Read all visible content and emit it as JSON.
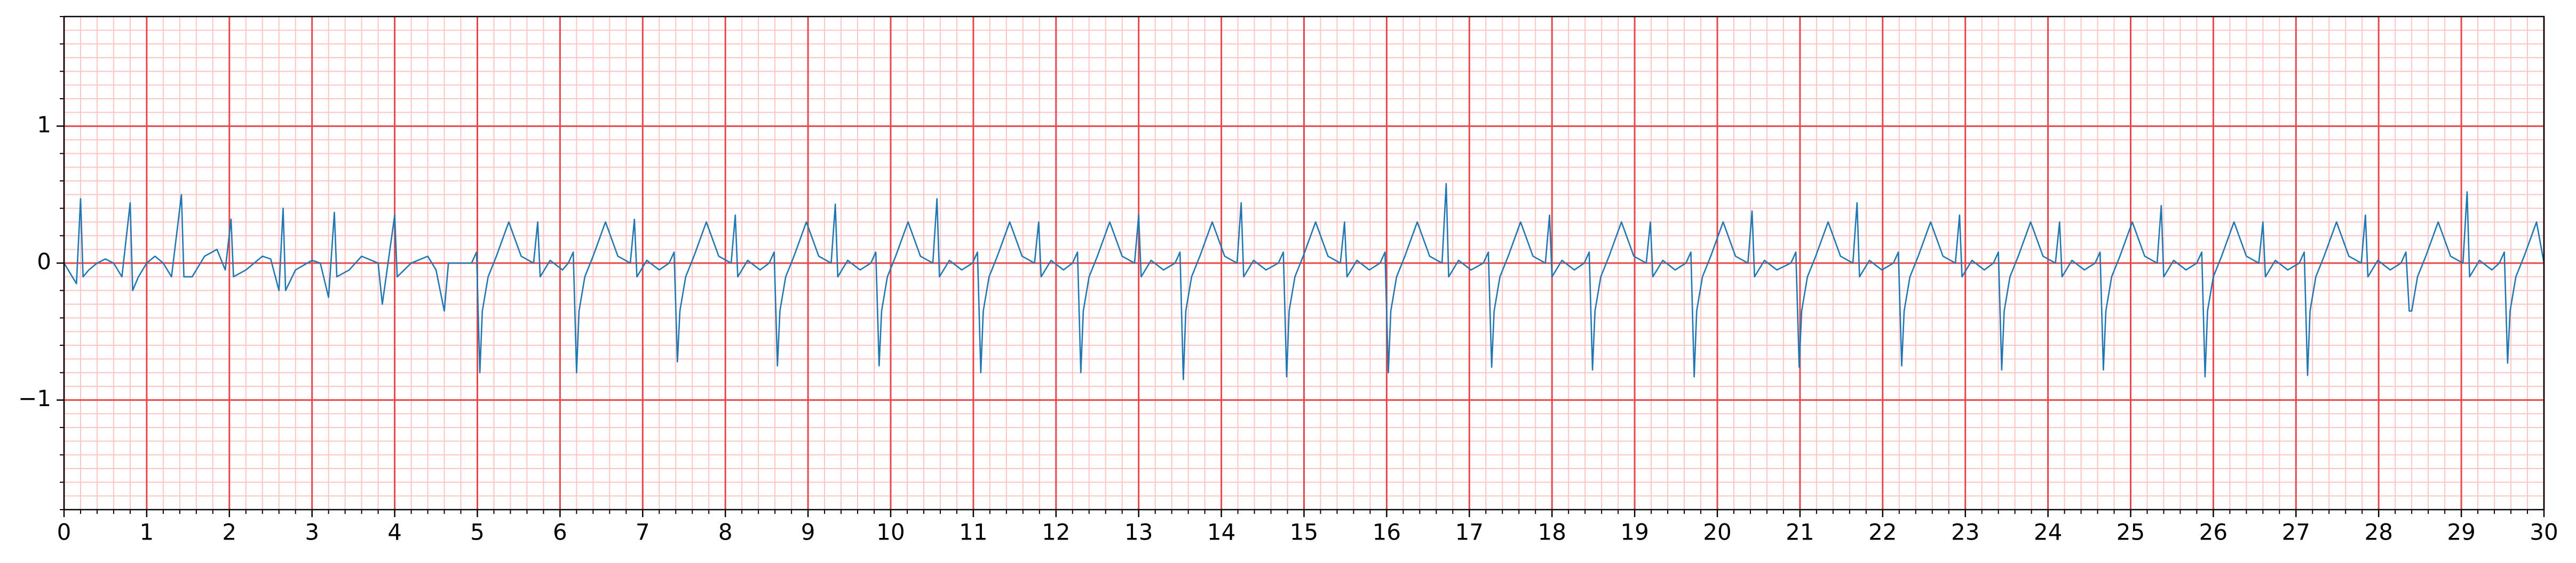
{
  "chart_data": {
    "type": "line",
    "xlim": [
      0,
      30
    ],
    "ylim": [
      -1.8,
      1.8
    ],
    "xticks": [
      0,
      1,
      2,
      3,
      4,
      5,
      6,
      7,
      8,
      9,
      10,
      11,
      12,
      13,
      14,
      15,
      16,
      17,
      18,
      19,
      20,
      21,
      22,
      23,
      24,
      25,
      26,
      27,
      28,
      29,
      30
    ],
    "yticks": [
      {
        "value": -1,
        "label": "−1"
      },
      0,
      1
    ],
    "grid": true,
    "grid_color": "#e8474a",
    "minor_grid_color": "#ffc4c4",
    "minor_grid_step": {
      "x": 0.2,
      "y": 0.1
    },
    "x": [
      0,
      0.1,
      0.15,
      0.2,
      0.23,
      0.3,
      0.4,
      0.5,
      0.6,
      0.7,
      0.8,
      0.83,
      0.9,
      1.0,
      1.1,
      1.2,
      1.3,
      1.42,
      1.45,
      1.55,
      1.7,
      1.85,
      1.95,
      2.02,
      2.05,
      2.2,
      2.4,
      2.5,
      2.6,
      2.65,
      2.68,
      2.8,
      3.0,
      3.1,
      3.2,
      3.27,
      3.3,
      3.45,
      3.6,
      3.8,
      3.85,
      4.0,
      4.03,
      4.2,
      4.4,
      4.5,
      4.6,
      4.65,
      4.8,
      4.93,
      4.99,
      5.03,
      5.06,
      5.13,
      5.23,
      5.38,
      5.53,
      5.68,
      5.73,
      5.76,
      5.88,
      6.03,
      6.1,
      6.16,
      6.2,
      6.23,
      6.3,
      6.4,
      6.55,
      6.7,
      6.85,
      6.9,
      6.93,
      7.05,
      7.2,
      7.32,
      7.38,
      7.42,
      7.45,
      7.52,
      7.62,
      7.77,
      7.92,
      8.07,
      8.12,
      8.15,
      8.27,
      8.42,
      8.53,
      8.59,
      8.63,
      8.66,
      8.73,
      8.83,
      8.98,
      9.13,
      9.28,
      9.33,
      9.36,
      9.48,
      9.63,
      9.76,
      9.82,
      9.86,
      9.89,
      9.96,
      10.06,
      10.21,
      10.36,
      10.51,
      10.56,
      10.59,
      10.71,
      10.86,
      10.99,
      11.05,
      11.09,
      11.12,
      11.19,
      11.29,
      11.44,
      11.59,
      11.74,
      11.79,
      11.82,
      11.94,
      12.09,
      12.2,
      12.26,
      12.3,
      12.33,
      12.4,
      12.5,
      12.65,
      12.8,
      12.95,
      13.0,
      13.03,
      13.15,
      13.3,
      13.44,
      13.5,
      13.54,
      13.57,
      13.64,
      13.74,
      13.89,
      14.04,
      14.19,
      14.24,
      14.27,
      14.39,
      14.54,
      14.69,
      14.75,
      14.79,
      14.82,
      14.89,
      14.99,
      15.14,
      15.29,
      15.44,
      15.49,
      15.52,
      15.64,
      15.79,
      15.92,
      15.98,
      16.02,
      16.05,
      16.12,
      16.22,
      16.37,
      16.52,
      16.67,
      16.72,
      16.75,
      16.87,
      17.02,
      17.17,
      17.23,
      17.27,
      17.3,
      17.37,
      17.47,
      17.62,
      17.77,
      17.92,
      17.97,
      18.0,
      18.12,
      18.27,
      18.39,
      18.45,
      18.49,
      18.52,
      18.59,
      18.69,
      18.84,
      18.99,
      19.14,
      19.19,
      19.22,
      19.34,
      19.49,
      19.62,
      19.68,
      19.72,
      19.75,
      19.82,
      19.92,
      20.07,
      20.22,
      20.37,
      20.42,
      20.45,
      20.57,
      20.72,
      20.89,
      20.95,
      20.99,
      21.02,
      21.09,
      21.19,
      21.34,
      21.49,
      21.64,
      21.69,
      21.72,
      21.84,
      21.99,
      22.13,
      22.19,
      22.23,
      22.26,
      22.33,
      22.43,
      22.58,
      22.73,
      22.88,
      22.93,
      22.96,
      23.08,
      23.23,
      23.34,
      23.4,
      23.44,
      23.47,
      23.54,
      23.64,
      23.79,
      23.94,
      24.09,
      24.14,
      24.17,
      24.29,
      24.44,
      24.57,
      24.63,
      24.67,
      24.7,
      24.77,
      24.87,
      25.02,
      25.17,
      25.32,
      25.37,
      25.4,
      25.52,
      25.67,
      25.8,
      25.86,
      25.9,
      25.93,
      26.0,
      26.1,
      26.25,
      26.4,
      26.55,
      26.6,
      26.63,
      26.75,
      26.9,
      27.04,
      27.1,
      27.14,
      27.17,
      27.24,
      27.34,
      27.49,
      27.64,
      27.79,
      27.84,
      27.87,
      27.99,
      28.14,
      28.27,
      28.33,
      28.37,
      28.4,
      28.47,
      28.57,
      28.72,
      28.87,
      29.02,
      29.07,
      29.1,
      29.22,
      29.37,
      29.46,
      29.52,
      29.56,
      29.59,
      29.66,
      29.76,
      29.91,
      30.0
    ],
    "series": [
      {
        "color": "#1f77b4",
        "values": [
          0,
          -0.1,
          -0.15,
          0.47,
          -0.1,
          -0.05,
          0.0,
          0.03,
          0.0,
          -0.1,
          0.44,
          -0.2,
          -0.1,
          0.0,
          0.05,
          0.0,
          -0.1,
          0.5,
          -0.1,
          -0.1,
          0.05,
          0.1,
          -0.05,
          0.32,
          -0.1,
          -0.05,
          0.05,
          0.03,
          -0.2,
          0.4,
          -0.2,
          -0.05,
          0.02,
          0.0,
          -0.25,
          0.37,
          -0.1,
          -0.05,
          0.05,
          0.0,
          -0.3,
          0.35,
          -0.1,
          0.0,
          0.05,
          -0.05,
          -0.35,
          0.0,
          0.0,
          0,
          0.08,
          -0.8,
          -0.35,
          -0.1,
          0.05,
          0.3,
          0.05,
          0,
          0.3,
          -0.1,
          0.02,
          -0.05,
          0,
          0.08,
          -0.8,
          -0.35,
          -0.1,
          0.05,
          0.3,
          0.05,
          0,
          0.32,
          -0.1,
          0.02,
          -0.05,
          0,
          0.08,
          -0.72,
          -0.35,
          -0.1,
          0.05,
          0.3,
          0.05,
          0,
          0.35,
          -0.1,
          0.02,
          -0.05,
          0,
          0.08,
          -0.75,
          -0.35,
          -0.1,
          0.05,
          0.3,
          0.05,
          0,
          0.43,
          -0.1,
          0.02,
          -0.05,
          0,
          0.08,
          -0.75,
          -0.35,
          -0.1,
          0.05,
          0.3,
          0.05,
          0,
          0.47,
          -0.1,
          0.02,
          -0.05,
          0,
          0.08,
          -0.8,
          -0.35,
          -0.1,
          0.05,
          0.3,
          0.05,
          0,
          0.3,
          -0.1,
          0.02,
          -0.05,
          0,
          0.08,
          -0.8,
          -0.35,
          -0.1,
          0.05,
          0.3,
          0.05,
          0,
          0.35,
          -0.1,
          0.02,
          -0.05,
          0,
          0.08,
          -0.85,
          -0.35,
          -0.1,
          0.05,
          0.3,
          0.05,
          0,
          0.44,
          -0.1,
          0.02,
          -0.05,
          0,
          0.08,
          -0.83,
          -0.35,
          -0.1,
          0.05,
          0.3,
          0.05,
          0,
          0.3,
          -0.1,
          0.02,
          -0.05,
          0,
          0.08,
          -0.8,
          -0.35,
          -0.1,
          0.05,
          0.3,
          0.05,
          0,
          0.58,
          -0.1,
          0.02,
          -0.05,
          0,
          0.08,
          -0.76,
          -0.35,
          -0.1,
          0.05,
          0.3,
          0.05,
          0,
          0.35,
          -0.1,
          0.02,
          -0.05,
          0,
          0.08,
          -0.78,
          -0.35,
          -0.1,
          0.05,
          0.3,
          0.05,
          0,
          0.3,
          -0.1,
          0.02,
          -0.05,
          0,
          0.08,
          -0.83,
          -0.35,
          -0.1,
          0.05,
          0.3,
          0.05,
          0,
          0.38,
          -0.1,
          0.02,
          -0.05,
          0,
          0.08,
          -0.76,
          -0.35,
          -0.1,
          0.05,
          0.3,
          0.05,
          0,
          0.44,
          -0.1,
          0.02,
          -0.05,
          0,
          0.08,
          -0.75,
          -0.35,
          -0.1,
          0.05,
          0.3,
          0.05,
          0,
          0.35,
          -0.1,
          0.02,
          -0.05,
          0,
          0.08,
          -0.78,
          -0.35,
          -0.1,
          0.05,
          0.3,
          0.05,
          0,
          0.3,
          -0.1,
          0.02,
          -0.05,
          0,
          0.08,
          -0.78,
          -0.35,
          -0.1,
          0.05,
          0.3,
          0.05,
          0,
          0.42,
          -0.1,
          0.02,
          -0.05,
          0,
          0.08,
          -0.83,
          -0.35,
          -0.1,
          0.05,
          0.3,
          0.05,
          0,
          0.3,
          -0.1,
          0.02,
          -0.05,
          0,
          0.08,
          -0.82,
          -0.35,
          -0.1,
          0.05,
          0.3,
          0.05,
          0,
          0.35,
          -0.1,
          0.02,
          -0.05,
          0,
          0.08,
          -0.35,
          -0.35,
          -0.1,
          0.05,
          0.3,
          0.05,
          0,
          0.52,
          -0.1,
          0.02,
          -0.05,
          0,
          0.08,
          -0.73,
          -0.35,
          -0.1,
          0.05,
          0.3,
          0
        ]
      }
    ]
  }
}
